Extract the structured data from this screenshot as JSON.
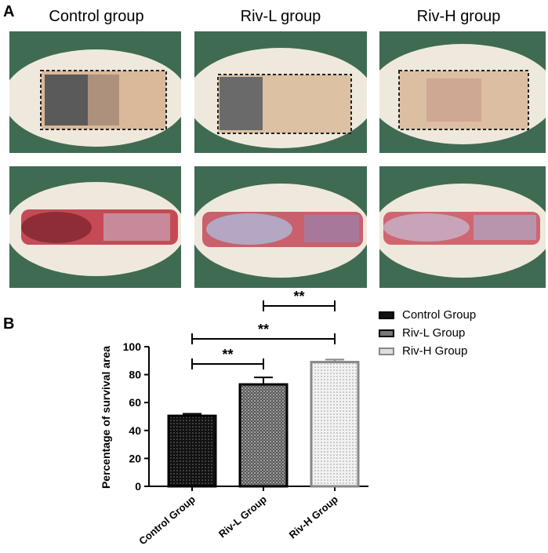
{
  "panels": {
    "a_label": "A",
    "b_label": "B"
  },
  "groups": [
    {
      "title": "Control group"
    },
    {
      "title": "Riv-L group"
    },
    {
      "title": "Riv-H group"
    }
  ],
  "chart_data": {
    "type": "bar",
    "categories": [
      "Control Group",
      "Riv-L Group",
      "Riv-H Group"
    ],
    "values": [
      50.5,
      73,
      89
    ],
    "errors": [
      1.5,
      5,
      1.8
    ],
    "ylabel": "Percentage of survival area",
    "xlabel": "",
    "ylim": [
      0,
      100
    ],
    "yticks": [
      0,
      20,
      40,
      60,
      80,
      100
    ],
    "grid": false,
    "legend_position": "top-right",
    "legend": [
      "Control Group",
      "Riv-L Group",
      "Riv-H Group"
    ],
    "colors": [
      "#111111",
      "#777777",
      "#bbbbbb"
    ],
    "significance": [
      {
        "from": "Riv-L Group",
        "to": "Riv-H Group",
        "label": "**"
      },
      {
        "from": "Control Group",
        "to": "Riv-H Group",
        "label": "**"
      },
      {
        "from": "Control Group",
        "to": "Riv-L Group",
        "label": "**"
      }
    ]
  }
}
